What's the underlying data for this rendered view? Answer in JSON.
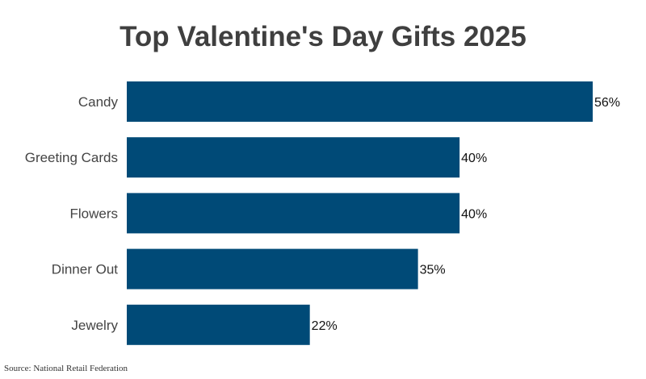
{
  "chart_data": {
    "type": "bar",
    "orientation": "horizontal",
    "title": "Top Valentine's Day Gifts 2025",
    "categories": [
      "Candy",
      "Greeting Cards",
      "Flowers",
      "Dinner Out",
      "Jewelry"
    ],
    "values": [
      56,
      40,
      40,
      35,
      22
    ],
    "value_labels": [
      "56%",
      "40%",
      "40%",
      "35%",
      "22%"
    ],
    "unit": "%",
    "xlim": [
      0,
      56
    ],
    "grid": false,
    "legend": "none",
    "bar_color": "#004a77"
  },
  "source": "Source: National Retail Federation"
}
